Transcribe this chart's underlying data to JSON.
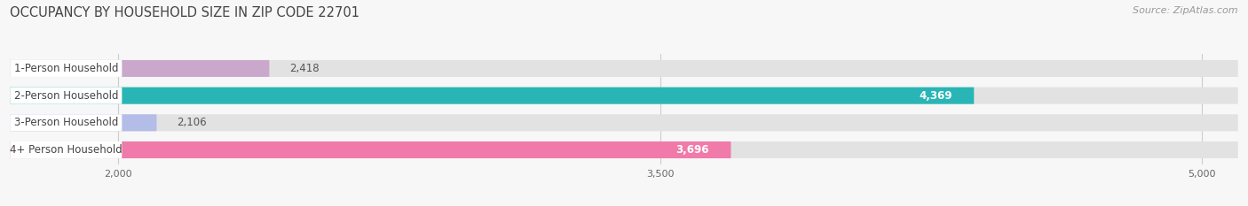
{
  "title": "OCCUPANCY BY HOUSEHOLD SIZE IN ZIP CODE 22701",
  "source": "Source: ZipAtlas.com",
  "categories": [
    "1-Person Household",
    "2-Person Household",
    "3-Person Household",
    "4+ Person Household"
  ],
  "values": [
    2418,
    4369,
    2106,
    3696
  ],
  "bar_colors": [
    "#c9a8cc",
    "#29b5b5",
    "#b4bce8",
    "#f07aaa"
  ],
  "bar_bg_color": "#e2e2e2",
  "label_box_color": "#ffffff",
  "xlim_min": 1700,
  "xlim_max": 5100,
  "xticks": [
    2000,
    3500,
    5000
  ],
  "value_labels": [
    "2,418",
    "4,369",
    "2,106",
    "3,696"
  ],
  "title_fontsize": 10.5,
  "source_fontsize": 8,
  "label_fontsize": 8.5,
  "value_fontsize": 8.5,
  "tick_fontsize": 8,
  "figsize": [
    14.06,
    2.33
  ],
  "dpi": 100,
  "bg_color": "#f7f7f7"
}
